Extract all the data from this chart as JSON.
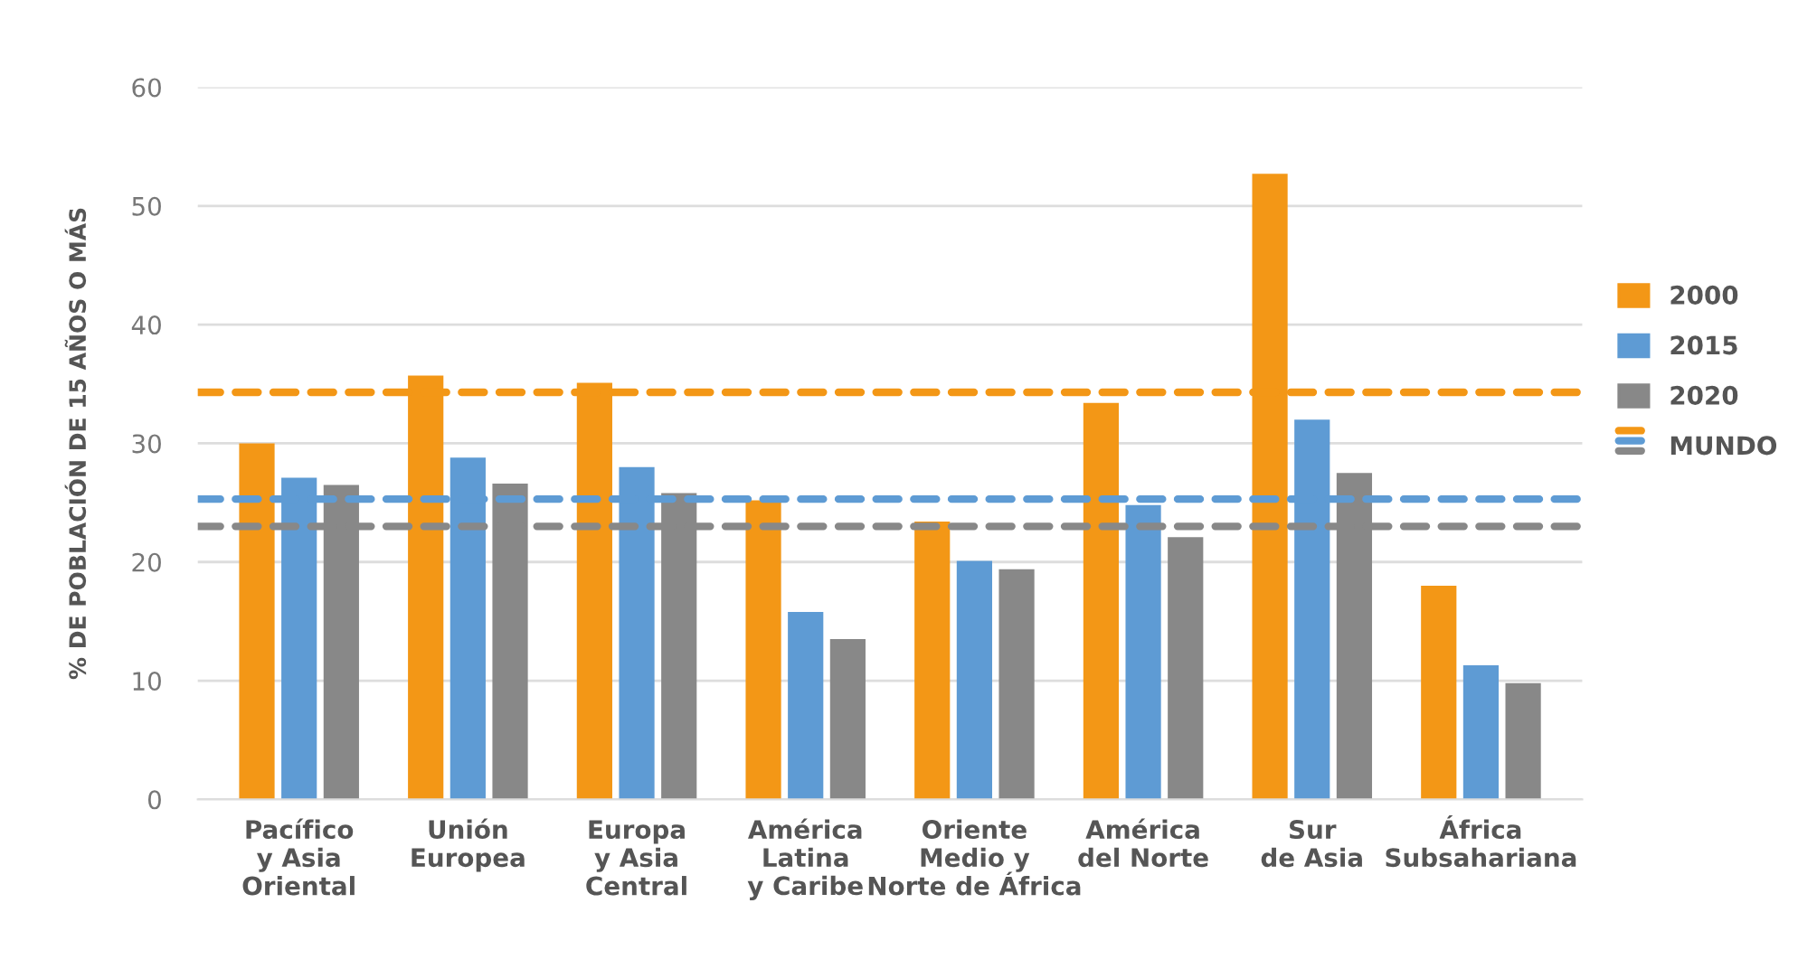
{
  "chart_data": {
    "type": "bar",
    "ylabel": "% DE POBLACIÓN DE 15 AÑOS O MÁS",
    "categories": [
      "Pacífico\ny Asia\nOriental",
      "Unión\nEuropea",
      "Europa\ny Asia\nCentral",
      "América\nLatina\ny Caribe",
      "Oriente\nMedio y\nNorte de África",
      "América\ndel Norte",
      "Sur\nde Asia",
      "África\nSubsahariana"
    ],
    "series": [
      {
        "name": "2000",
        "color": "#f39716",
        "values": [
          30.0,
          35.7,
          35.1,
          25.2,
          23.4,
          33.4,
          52.7,
          18.0
        ]
      },
      {
        "name": "2015",
        "color": "#5e9bd4",
        "values": [
          27.1,
          28.8,
          28.0,
          15.8,
          20.1,
          24.8,
          32.0,
          11.3
        ]
      },
      {
        "name": "2020",
        "color": "#888888",
        "values": [
          26.5,
          26.6,
          25.8,
          13.5,
          19.4,
          22.1,
          27.5,
          9.8
        ]
      }
    ],
    "ref_lines": [
      {
        "axis": "y",
        "value": 34.3,
        "label": "MUNDO",
        "color": "#f39716",
        "line_style": "dashed"
      },
      {
        "axis": "y",
        "value": 25.3,
        "color": "#5e9bd4",
        "line_style": "dashed"
      },
      {
        "axis": "y",
        "value": 23.0,
        "color": "#888888",
        "line_style": "dashed"
      }
    ],
    "ylim": [
      0,
      60
    ],
    "yticks": [
      0,
      10,
      20,
      30,
      40,
      50,
      60
    ],
    "grid": "y",
    "legend": "right"
  }
}
